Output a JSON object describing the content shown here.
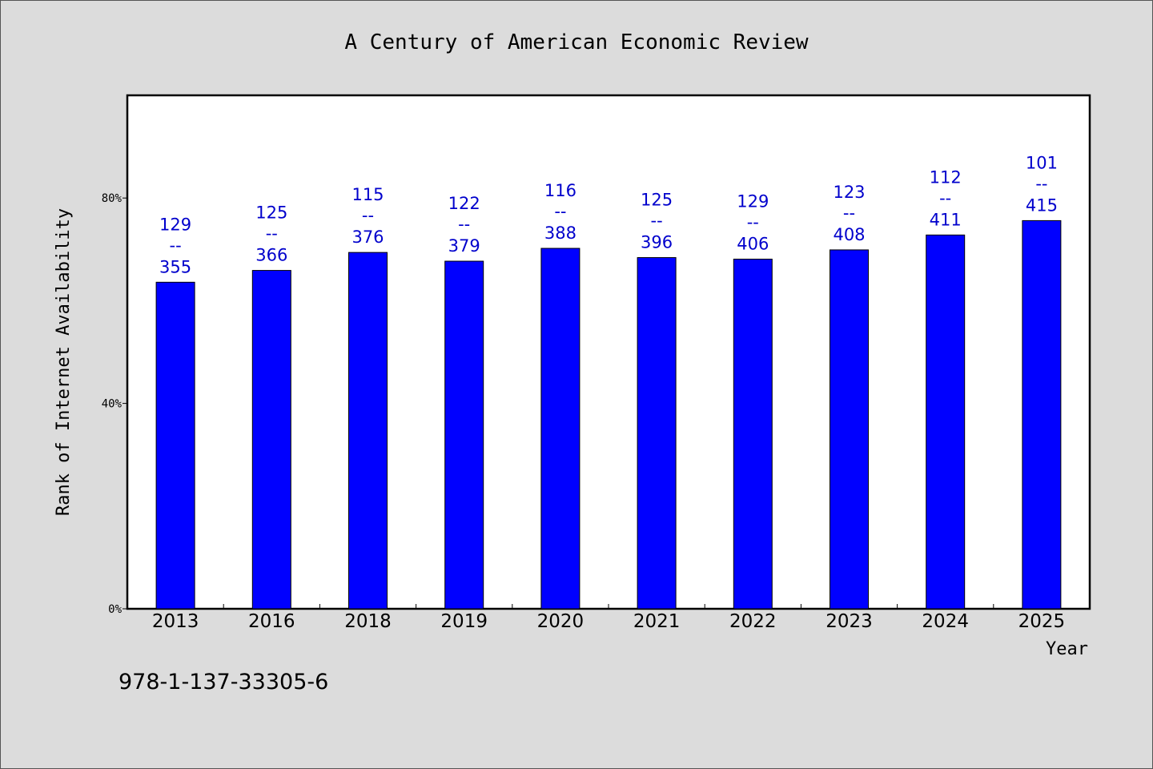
{
  "chart_data": {
    "type": "bar",
    "title": "A Century of American Economic Review",
    "xlabel": "Year",
    "ylabel": "Rank of Internet Availability",
    "ylim": [
      0,
      100
    ],
    "yticks": [
      {
        "value": 0,
        "label": "0%"
      },
      {
        "value": 40,
        "label": "40%"
      },
      {
        "value": 80,
        "label": "80%"
      }
    ],
    "categories": [
      "2013",
      "2016",
      "2018",
      "2019",
      "2020",
      "2021",
      "2022",
      "2023",
      "2024",
      "2025"
    ],
    "values": [
      63.6,
      65.9,
      69.4,
      67.7,
      70.2,
      68.4,
      68.1,
      69.9,
      72.8,
      75.6
    ],
    "bar_labels": [
      {
        "top": "129",
        "sep": "--",
        "bottom": "355"
      },
      {
        "top": "125",
        "sep": "--",
        "bottom": "366"
      },
      {
        "top": "115",
        "sep": "--",
        "bottom": "376"
      },
      {
        "top": "122",
        "sep": "--",
        "bottom": "379"
      },
      {
        "top": "116",
        "sep": "--",
        "bottom": "388"
      },
      {
        "top": "125",
        "sep": "--",
        "bottom": "396"
      },
      {
        "top": "129",
        "sep": "--",
        "bottom": "406"
      },
      {
        "top": "123",
        "sep": "--",
        "bottom": "408"
      },
      {
        "top": "112",
        "sep": "--",
        "bottom": "411"
      },
      {
        "top": "101",
        "sep": "--",
        "bottom": "415"
      }
    ],
    "bar_color": "#0000ff",
    "label_color": "#0000cc",
    "grid": false
  },
  "footer": {
    "code": "978-1-137-33305-6"
  }
}
